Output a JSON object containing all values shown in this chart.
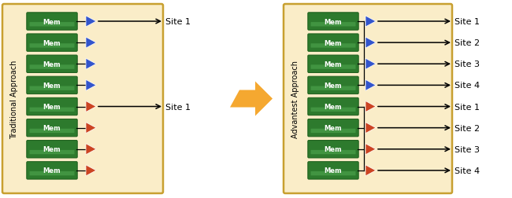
{
  "fig_width": 6.5,
  "fig_height": 2.53,
  "dpi": 100,
  "bg_color": "#ffffff",
  "panel_bg": "#faedc8",
  "panel_border": "#c8a030",
  "green_box": "#2d7a2d",
  "green_box_border": "#1a5c1a",
  "green_highlight": "#5ab55a",
  "green_text": "#ffffff",
  "blue_tri": "#3355cc",
  "red_tri": "#cc4422",
  "orange_color": "#f5a830",
  "black": "#000000",
  "mem_label": "Mem",
  "traditional_label": "Traditional Approach",
  "advantest_label": "Advantest Approach",
  "adv_blue_sites": [
    "Site 1",
    "Site 2",
    "Site 3",
    "Site 4"
  ],
  "adv_red_sites": [
    "Site 1",
    "Site 2",
    "Site 3",
    "Site 4"
  ]
}
